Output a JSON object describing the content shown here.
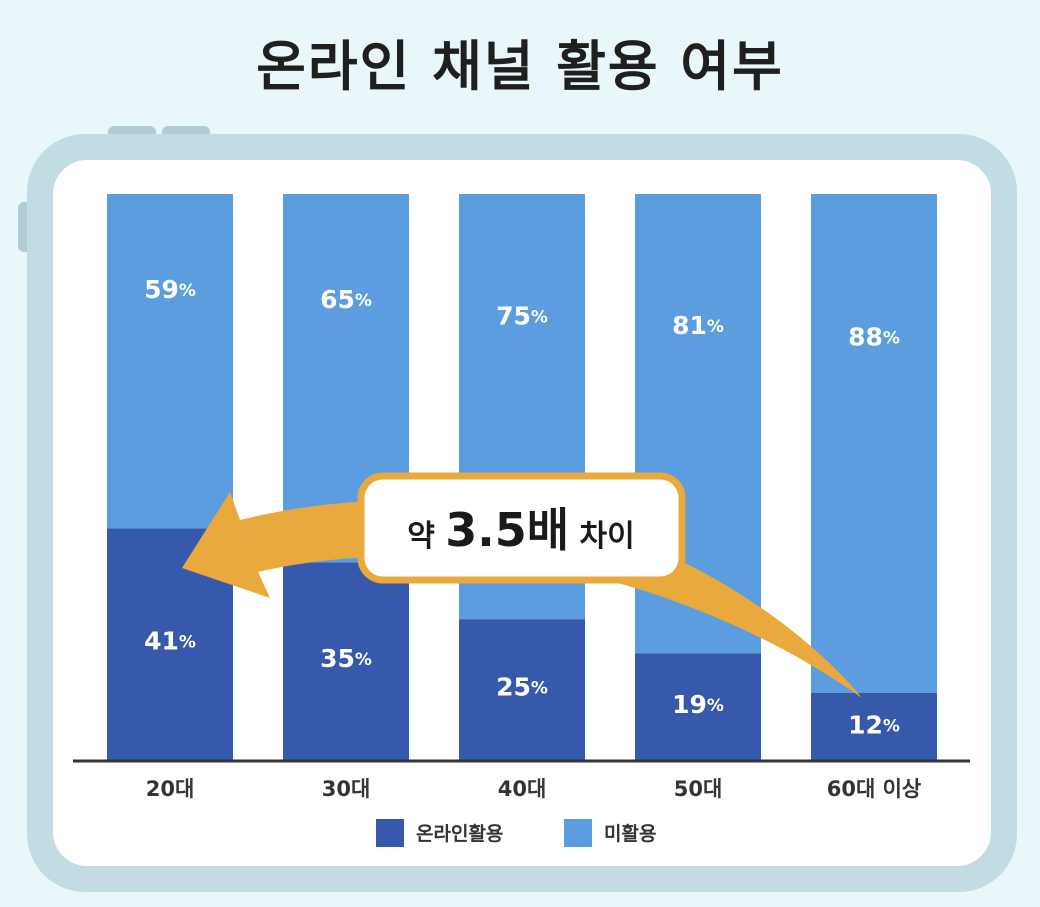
{
  "title": "온라인 채널 활용 여부",
  "chart_data": {
    "type": "bar",
    "stacked": true,
    "categories": [
      "20대",
      "30대",
      "40대",
      "50대",
      "60대 이상"
    ],
    "series": [
      {
        "name": "온라인활용",
        "values": [
          41,
          35,
          25,
          19,
          12
        ],
        "color": "#3659ab"
      },
      {
        "name": "미활용",
        "values": [
          59,
          65,
          75,
          81,
          88
        ],
        "color": "#5b9ddf"
      }
    ],
    "value_suffix": "%",
    "ylim": [
      0,
      100
    ],
    "grid": false,
    "legend": "bottom-center",
    "annotation": {
      "prefix": "약",
      "value": "3.5배",
      "suffix": "차이",
      "from_category": "60대 이상",
      "to_category": "20대",
      "color": "#e9a93c"
    }
  }
}
